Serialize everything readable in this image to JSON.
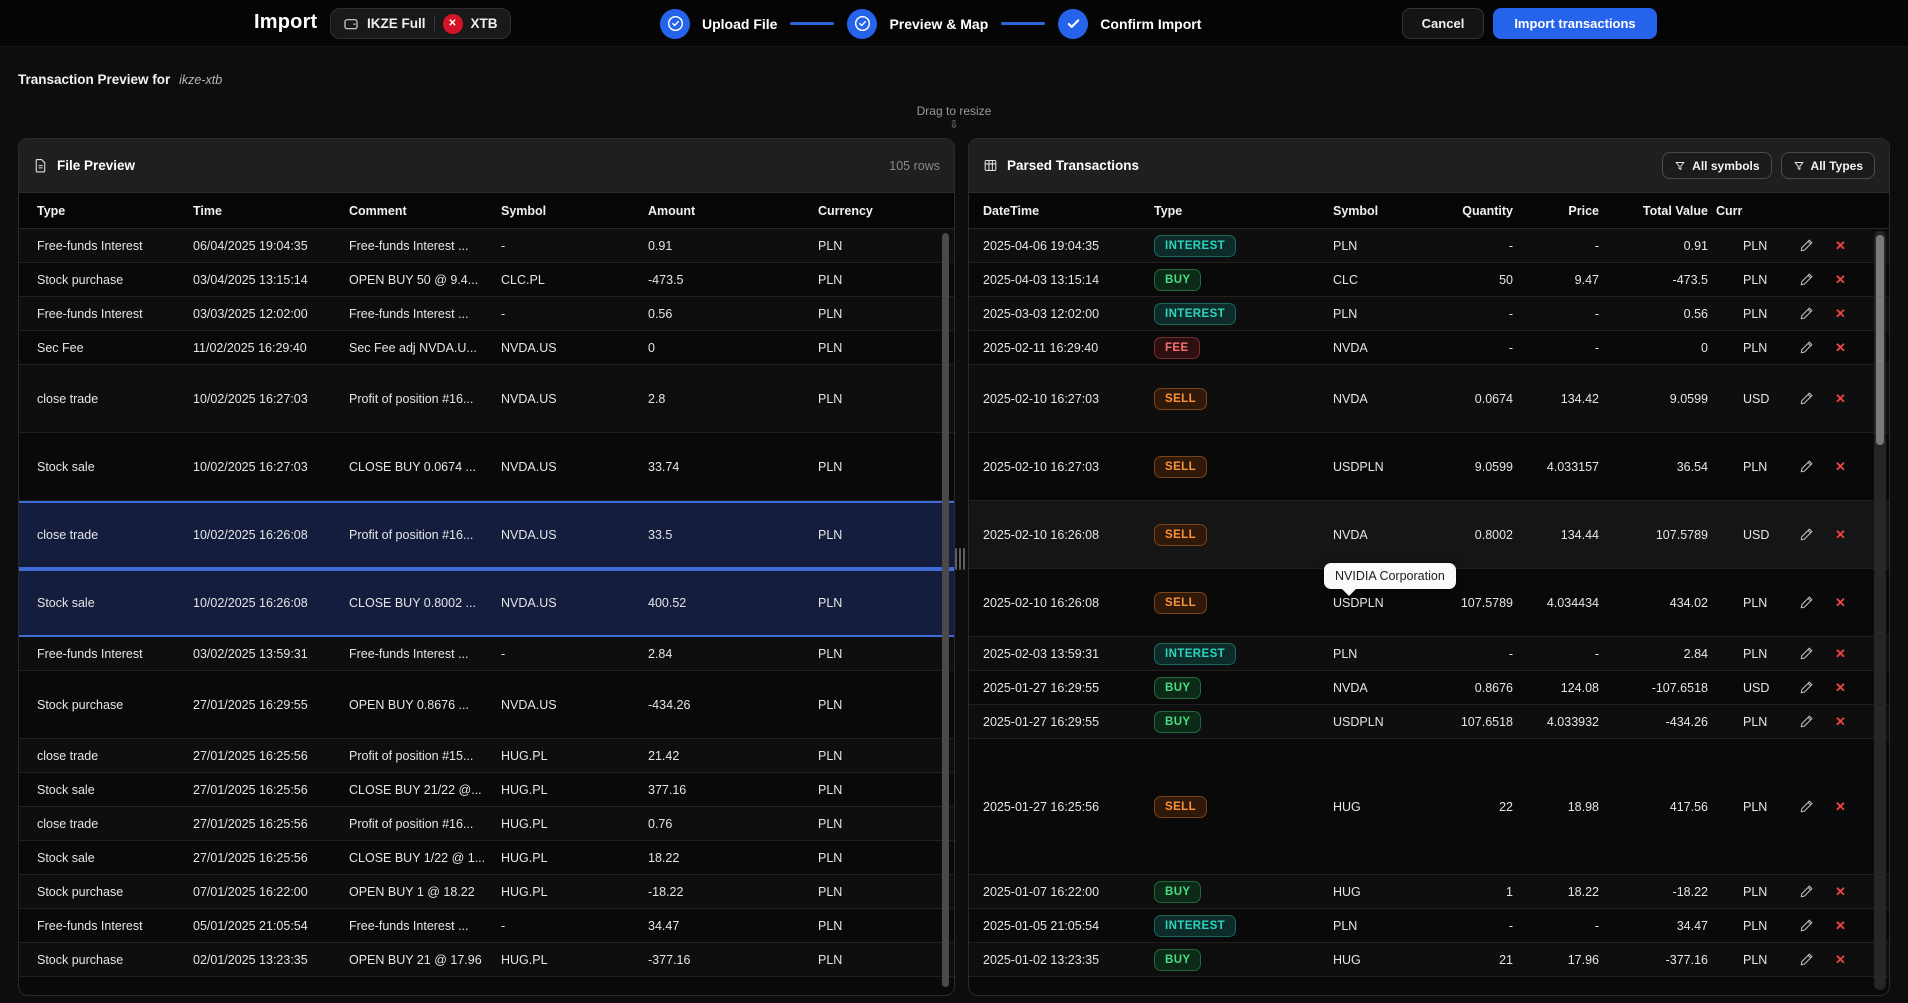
{
  "header": {
    "title": "Import",
    "account_badge": {
      "account": "IKZE Full",
      "broker": "XTB"
    },
    "steps": [
      {
        "label": "Upload File"
      },
      {
        "label": "Preview & Map"
      },
      {
        "label": "Confirm Import"
      }
    ],
    "cancel_label": "Cancel",
    "import_label": "Import transactions"
  },
  "subheader": {
    "title": "Transaction Preview for",
    "profile": "ikze-xtb",
    "drag_hint": "Drag to resize"
  },
  "file_preview": {
    "title": "File Preview",
    "rows_badge": "105 rows",
    "columns": [
      "Type",
      "Time",
      "Comment",
      "Symbol",
      "Amount",
      "Currency"
    ],
    "rows": [
      {
        "type": "Free-funds Interest",
        "time": "06/04/2025 19:04:35",
        "comment": "Free-funds Interest ...",
        "symbol": "-",
        "amount": "0.91",
        "currency": "PLN",
        "size": "h1",
        "selected": false
      },
      {
        "type": "Stock purchase",
        "time": "03/04/2025 13:15:14",
        "comment": "OPEN BUY 50 @ 9.4...",
        "symbol": "CLC.PL",
        "amount": "-473.5",
        "currency": "PLN",
        "size": "h1",
        "selected": false
      },
      {
        "type": "Free-funds Interest",
        "time": "03/03/2025 12:02:00",
        "comment": "Free-funds Interest ...",
        "symbol": "-",
        "amount": "0.56",
        "currency": "PLN",
        "size": "h1",
        "selected": false
      },
      {
        "type": "Sec Fee",
        "time": "11/02/2025 16:29:40",
        "comment": "Sec Fee adj NVDA.U...",
        "symbol": "NVDA.US",
        "amount": "0",
        "currency": "PLN",
        "size": "h1",
        "selected": false
      },
      {
        "type": "close trade",
        "time": "10/02/2025 16:27:03",
        "comment": "Profit of position #16...",
        "symbol": "NVDA.US",
        "amount": "2.8",
        "currency": "PLN",
        "size": "h2",
        "selected": false
      },
      {
        "type": "Stock sale",
        "time": "10/02/2025 16:27:03",
        "comment": "CLOSE BUY 0.0674 ...",
        "symbol": "NVDA.US",
        "amount": "33.74",
        "currency": "PLN",
        "size": "h2",
        "selected": false
      },
      {
        "type": "close trade",
        "time": "10/02/2025 16:26:08",
        "comment": "Profit of position #16...",
        "symbol": "NVDA.US",
        "amount": "33.5",
        "currency": "PLN",
        "size": "h2",
        "selected": true
      },
      {
        "type": "Stock sale",
        "time": "10/02/2025 16:26:08",
        "comment": "CLOSE BUY 0.8002 ...",
        "symbol": "NVDA.US",
        "amount": "400.52",
        "currency": "PLN",
        "size": "h2",
        "selected": true
      },
      {
        "type": "Free-funds Interest",
        "time": "03/02/2025 13:59:31",
        "comment": "Free-funds Interest ...",
        "symbol": "-",
        "amount": "2.84",
        "currency": "PLN",
        "size": "h1",
        "selected": false
      },
      {
        "type": "Stock purchase",
        "time": "27/01/2025 16:29:55",
        "comment": "OPEN BUY 0.8676 ...",
        "symbol": "NVDA.US",
        "amount": "-434.26",
        "currency": "PLN",
        "size": "h2",
        "selected": false
      },
      {
        "type": "close trade",
        "time": "27/01/2025 16:25:56",
        "comment": "Profit of position #15...",
        "symbol": "HUG.PL",
        "amount": "21.42",
        "currency": "PLN",
        "size": "h1",
        "selected": false
      },
      {
        "type": "Stock sale",
        "time": "27/01/2025 16:25:56",
        "comment": "CLOSE BUY 21/22 @...",
        "symbol": "HUG.PL",
        "amount": "377.16",
        "currency": "PLN",
        "size": "h1",
        "selected": false
      },
      {
        "type": "close trade",
        "time": "27/01/2025 16:25:56",
        "comment": "Profit of position #16...",
        "symbol": "HUG.PL",
        "amount": "0.76",
        "currency": "PLN",
        "size": "h1",
        "selected": false
      },
      {
        "type": "Stock sale",
        "time": "27/01/2025 16:25:56",
        "comment": "CLOSE BUY 1/22 @ 1...",
        "symbol": "HUG.PL",
        "amount": "18.22",
        "currency": "PLN",
        "size": "h1",
        "selected": false
      },
      {
        "type": "Stock purchase",
        "time": "07/01/2025 16:22:00",
        "comment": "OPEN BUY 1 @ 18.22",
        "symbol": "HUG.PL",
        "amount": "-18.22",
        "currency": "PLN",
        "size": "h1",
        "selected": false
      },
      {
        "type": "Free-funds Interest",
        "time": "05/01/2025 21:05:54",
        "comment": "Free-funds Interest ...",
        "symbol": "-",
        "amount": "34.47",
        "currency": "PLN",
        "size": "h1",
        "selected": false
      },
      {
        "type": "Stock purchase",
        "time": "02/01/2025 13:23:35",
        "comment": "OPEN BUY 21 @ 17.96",
        "symbol": "HUG.PL",
        "amount": "-377.16",
        "currency": "PLN",
        "size": "h1",
        "selected": false
      }
    ]
  },
  "parsed": {
    "title": "Parsed Transactions",
    "filters": [
      {
        "label": "All symbols"
      },
      {
        "label": "All Types"
      }
    ],
    "columns": [
      "DateTime",
      "Type",
      "Symbol",
      "Quantity",
      "Price",
      "Total Value",
      "Curren..."
    ],
    "tooltip": "NVIDIA Corporation",
    "rows": [
      {
        "datetime": "2025-04-06 19:04:35",
        "type": "INTEREST",
        "symbol": "PLN",
        "qty": "-",
        "price": "-",
        "total": "0.91",
        "currency": "PLN",
        "size": "h1",
        "hovered": false
      },
      {
        "datetime": "2025-04-03 13:15:14",
        "type": "BUY",
        "symbol": "CLC",
        "qty": "50",
        "price": "9.47",
        "total": "-473.5",
        "currency": "PLN",
        "size": "h1",
        "hovered": false
      },
      {
        "datetime": "2025-03-03 12:02:00",
        "type": "INTEREST",
        "symbol": "PLN",
        "qty": "-",
        "price": "-",
        "total": "0.56",
        "currency": "PLN",
        "size": "h1",
        "hovered": false
      },
      {
        "datetime": "2025-02-11 16:29:40",
        "type": "FEE",
        "symbol": "NVDA",
        "qty": "-",
        "price": "-",
        "total": "0",
        "currency": "PLN",
        "size": "h1",
        "hovered": false
      },
      {
        "datetime": "2025-02-10 16:27:03",
        "type": "SELL",
        "symbol": "NVDA",
        "qty": "0.0674",
        "price": "134.42",
        "total": "9.0599",
        "currency": "USD",
        "size": "h2",
        "hovered": false
      },
      {
        "datetime": "2025-02-10 16:27:03",
        "type": "SELL",
        "symbol": "USDPLN",
        "qty": "9.0599",
        "price": "4.033157",
        "total": "36.54",
        "currency": "PLN",
        "size": "h2",
        "hovered": false
      },
      {
        "datetime": "2025-02-10 16:26:08",
        "type": "SELL",
        "symbol": "NVDA",
        "qty": "0.8002",
        "price": "134.44",
        "total": "107.5789",
        "currency": "USD",
        "size": "h2",
        "hovered": true
      },
      {
        "datetime": "2025-02-10 16:26:08",
        "type": "SELL",
        "symbol": "USDPLN",
        "qty": "107.5789",
        "price": "4.034434",
        "total": "434.02",
        "currency": "PLN",
        "size": "h2",
        "hovered": false
      },
      {
        "datetime": "2025-02-03 13:59:31",
        "type": "INTEREST",
        "symbol": "PLN",
        "qty": "-",
        "price": "-",
        "total": "2.84",
        "currency": "PLN",
        "size": "h1",
        "hovered": false
      },
      {
        "datetime": "2025-01-27 16:29:55",
        "type": "BUY",
        "symbol": "NVDA",
        "qty": "0.8676",
        "price": "124.08",
        "total": "-107.6518",
        "currency": "USD",
        "size": "h1",
        "hovered": false
      },
      {
        "datetime": "2025-01-27 16:29:55",
        "type": "BUY",
        "symbol": "USDPLN",
        "qty": "107.6518",
        "price": "4.033932",
        "total": "-434.26",
        "currency": "PLN",
        "size": "h1",
        "hovered": false
      },
      {
        "datetime": "2025-01-27 16:25:56",
        "type": "SELL",
        "symbol": "HUG",
        "qty": "22",
        "price": "18.98",
        "total": "417.56",
        "currency": "PLN",
        "size": "h4",
        "hovered": false
      },
      {
        "datetime": "2025-01-07 16:22:00",
        "type": "BUY",
        "symbol": "HUG",
        "qty": "1",
        "price": "18.22",
        "total": "-18.22",
        "currency": "PLN",
        "size": "h1",
        "hovered": false
      },
      {
        "datetime": "2025-01-05 21:05:54",
        "type": "INTEREST",
        "symbol": "PLN",
        "qty": "-",
        "price": "-",
        "total": "34.47",
        "currency": "PLN",
        "size": "h1",
        "hovered": false
      },
      {
        "datetime": "2025-01-02 13:23:35",
        "type": "BUY",
        "symbol": "HUG",
        "qty": "21",
        "price": "17.96",
        "total": "-377.16",
        "currency": "PLN",
        "size": "h1",
        "hovered": false
      }
    ]
  },
  "colors": {
    "accent_blue": "#2563eb",
    "selected_row_bg": "#141d3d",
    "selected_row_border": "#3e6bd6",
    "badge_interest": "#2dd4bf",
    "badge_buy": "#4ade80",
    "badge_fee": "#f87171",
    "badge_sell": "#fb923c",
    "delete_red": "#ef4444",
    "xtb_red": "#d61427"
  }
}
